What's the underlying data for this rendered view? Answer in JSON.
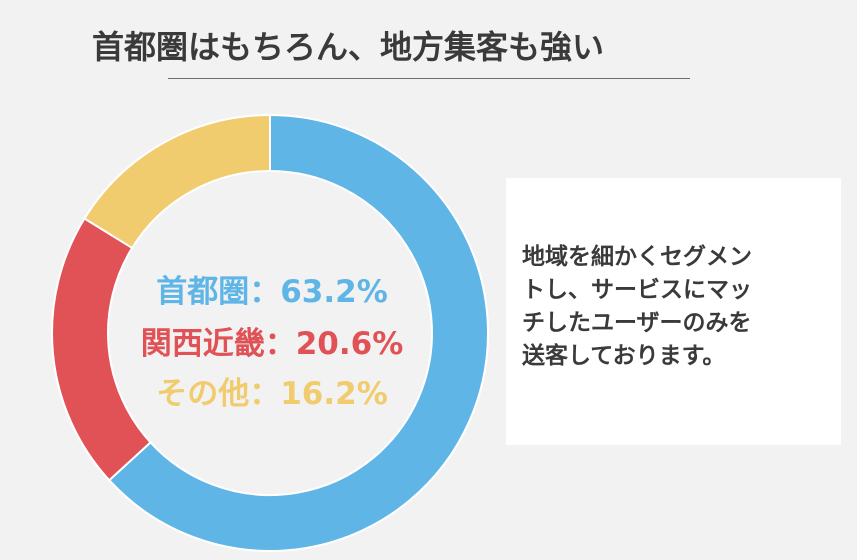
{
  "header": {
    "title": "首都圏はもちろん、地方集客も強い"
  },
  "chart_data": {
    "type": "pie",
    "donut": true,
    "categories": [
      "首都圏",
      "関西近畿",
      "その他"
    ],
    "values": [
      63.2,
      20.6,
      16.2
    ],
    "colors": [
      "#5fb5e6",
      "#e05256",
      "#f0cc6e"
    ],
    "labels": [
      {
        "name": "首都圏",
        "sep": "：",
        "value_text": "63.2%"
      },
      {
        "name": "関西近畿",
        "sep": "：",
        "value_text": "20.6%"
      },
      {
        "name": "その他",
        "sep": "：",
        "value_text": "16.2%"
      }
    ]
  },
  "info_box": {
    "lines": [
      "地域を細かくセグメン",
      "トし、サービスにマッ",
      "チしたユーザーのみを",
      "送客しております。"
    ]
  }
}
